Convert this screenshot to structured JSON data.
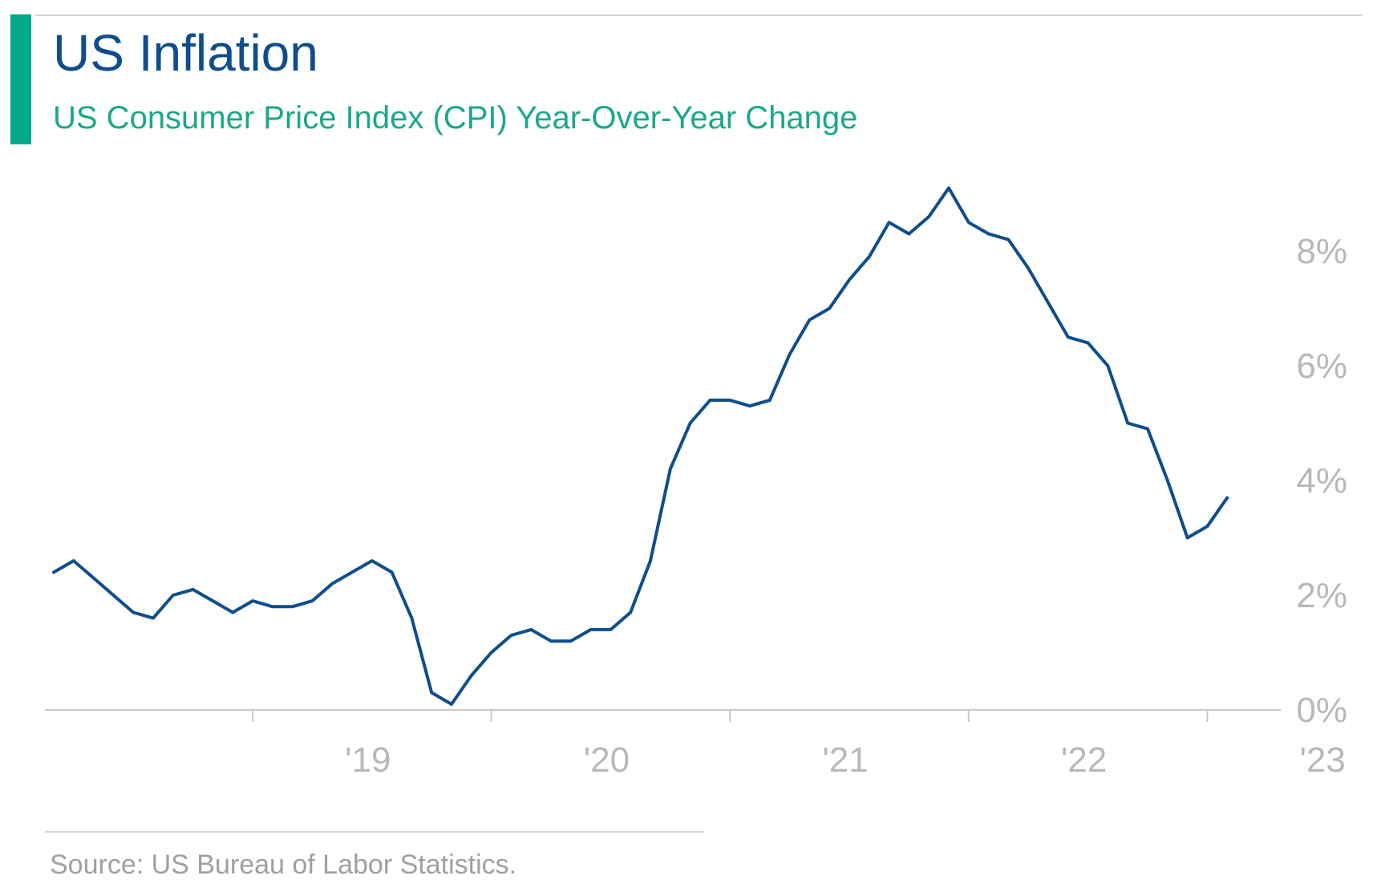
{
  "header": {
    "title": "US Inflation",
    "subtitle": "US Consumer Price Index (CPI) Year-Over-Year Change"
  },
  "footer": {
    "source": "Source: US Bureau of Labor Statistics."
  },
  "colors": {
    "accent": "#00a88c",
    "title": "#0f4d8c",
    "subtitle": "#1aa88c",
    "line": "#0f4d8c",
    "axis_text": "#b8b8b8",
    "rule": "#d4d4d4"
  },
  "chart_data": {
    "type": "line",
    "title": "US Inflation",
    "subtitle": "US Consumer Price Index (CPI) Year-Over-Year Change",
    "x_start": "2018-03",
    "x_frequency": "monthly",
    "x_ticks": [
      "'19",
      "'20",
      "'21",
      "'22",
      "'23"
    ],
    "y_ticks": [
      "0%",
      "2%",
      "4%",
      "6%",
      "8%"
    ],
    "y_tick_values": [
      0,
      2,
      4,
      6,
      8
    ],
    "ylim": [
      0,
      9.2
    ],
    "y_axis_position": "right",
    "grid": false,
    "legend": "none",
    "series": [
      {
        "values": [
          2.4,
          2.6,
          2.3,
          2.0,
          1.7,
          1.6,
          2.0,
          2.1,
          1.9,
          1.7,
          1.9,
          1.8,
          1.8,
          1.9,
          2.2,
          2.4,
          2.6,
          2.4,
          1.6,
          0.3,
          0.1,
          0.6,
          1.0,
          1.3,
          1.4,
          1.2,
          1.2,
          1.4,
          1.4,
          1.7,
          2.6,
          4.2,
          5.0,
          5.4,
          5.4,
          5.3,
          5.4,
          6.2,
          6.8,
          7.0,
          7.5,
          7.9,
          8.5,
          8.3,
          8.6,
          9.1,
          8.5,
          8.3,
          8.2,
          7.7,
          7.1,
          6.5,
          6.4,
          6.0,
          5.0,
          4.9,
          4.0,
          3.0,
          3.2,
          3.7
        ]
      }
    ]
  }
}
